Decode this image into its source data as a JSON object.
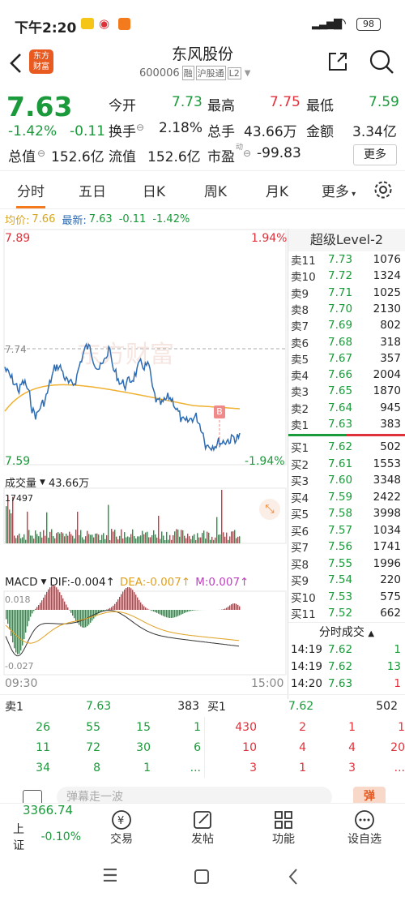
{
  "status": {
    "time": "下午2:20",
    "battery": "98"
  },
  "header": {
    "title": "东风股份",
    "code": "600006",
    "tag1": "融",
    "tag2": "沪股通",
    "tag3": "L2",
    "logo_line1": "东方",
    "logo_line2": "财富"
  },
  "quote": {
    "price": "7.63",
    "change_pct": "-1.42%",
    "change": "-0.11",
    "open_label": "今开",
    "open": "7.73",
    "high_label": "最高",
    "high": "7.75",
    "low_label": "最低",
    "low": "7.59",
    "turnover_label": "换手",
    "turnover": "2.18%",
    "volume_label": "总手",
    "volume": "43.66万",
    "amount_label": "金额",
    "amount": "3.34亿",
    "mktcap_label": "总值",
    "mktcap": "152.6亿",
    "float_label": "流值",
    "float": "152.6亿",
    "pe_label": "市盈",
    "pe_sup": "动",
    "pe": "-99.83",
    "more": "更多"
  },
  "tabs": [
    "分时",
    "五日",
    "日K",
    "周K",
    "月K",
    "更多"
  ],
  "avgline": {
    "avg_label": "均价:",
    "avg": "7.66",
    "latest_label": "最新:",
    "latest": "7.63",
    "chg": "-0.11",
    "pct": "-1.42%"
  },
  "chart": {
    "price_high": "7.89",
    "price_ref": "7.74",
    "price_low": "7.59",
    "pct_high": "1.94%",
    "pct_low": "-1.94%",
    "marker": "B",
    "vol_label": "成交量",
    "vol_total": "43.66万",
    "vol_max": "17497",
    "macd_label": "MACD",
    "dif": "DIF:-0.004",
    "dea": "DEA:-0.007",
    "m": "M:0.007",
    "macd_high": "0.018",
    "macd_low": "-0.027",
    "time_start": "09:30",
    "time_end": "15:00",
    "watermark": "东方财富",
    "colors": {
      "up": "#e0303a",
      "down": "#1a9a3a",
      "price_line": "#2d6cb3",
      "avg_line": "#f0b030"
    }
  },
  "level2": {
    "title": "超级Level-2",
    "sell": [
      {
        "label": "卖11",
        "price": "7.73",
        "vol": "1076"
      },
      {
        "label": "卖10",
        "price": "7.72",
        "vol": "1324"
      },
      {
        "label": "卖9",
        "price": "7.71",
        "vol": "1025"
      },
      {
        "label": "卖8",
        "price": "7.70",
        "vol": "2130"
      },
      {
        "label": "卖7",
        "price": "7.69",
        "vol": "802"
      },
      {
        "label": "卖6",
        "price": "7.68",
        "vol": "318"
      },
      {
        "label": "卖5",
        "price": "7.67",
        "vol": "357"
      },
      {
        "label": "卖4",
        "price": "7.66",
        "vol": "2004"
      },
      {
        "label": "卖3",
        "price": "7.65",
        "vol": "1870"
      },
      {
        "label": "卖2",
        "price": "7.64",
        "vol": "945"
      },
      {
        "label": "卖1",
        "price": "7.63",
        "vol": "383"
      }
    ],
    "buy": [
      {
        "label": "买1",
        "price": "7.62",
        "vol": "502"
      },
      {
        "label": "买2",
        "price": "7.61",
        "vol": "1553"
      },
      {
        "label": "买3",
        "price": "7.60",
        "vol": "3348"
      },
      {
        "label": "买4",
        "price": "7.59",
        "vol": "2422"
      },
      {
        "label": "买5",
        "price": "7.58",
        "vol": "3998"
      },
      {
        "label": "买6",
        "price": "7.57",
        "vol": "1034"
      },
      {
        "label": "买7",
        "price": "7.56",
        "vol": "1741"
      },
      {
        "label": "买8",
        "price": "7.55",
        "vol": "1996"
      },
      {
        "label": "买9",
        "price": "7.54",
        "vol": "220"
      },
      {
        "label": "买10",
        "price": "7.53",
        "vol": "575"
      },
      {
        "label": "买11",
        "price": "7.52",
        "vol": "662"
      }
    ],
    "trades_title": "分时成交",
    "trades": [
      {
        "time": "14:19",
        "price": "7.62",
        "vol": "1"
      },
      {
        "time": "14:19",
        "price": "7.62",
        "vol": "13"
      },
      {
        "time": "14:20",
        "price": "7.63",
        "vol": "1"
      }
    ]
  },
  "queue": {
    "sell1_label": "卖1",
    "sell1_price": "7.63",
    "sell1_vol": "383",
    "buy1_label": "买1",
    "buy1_price": "7.62",
    "buy1_vol": "502",
    "sell_rows": [
      [
        "26",
        "55",
        "15",
        "1"
      ],
      [
        "11",
        "72",
        "30",
        "6"
      ],
      [
        "34",
        "8",
        "1",
        "..."
      ]
    ],
    "buy_rows": [
      [
        "430",
        "2",
        "1",
        "1"
      ],
      [
        "10",
        "4",
        "4",
        "20"
      ],
      [
        "3",
        "1",
        "3",
        "..."
      ]
    ]
  },
  "comment": {
    "placeholder": "弹幕走一波",
    "btn": "弹"
  },
  "bottomnav": {
    "index_value": "3366.74",
    "index_name": "上证",
    "index_pct": "-0.10%",
    "items": [
      "交易",
      "发帖",
      "功能",
      "设自选"
    ]
  }
}
